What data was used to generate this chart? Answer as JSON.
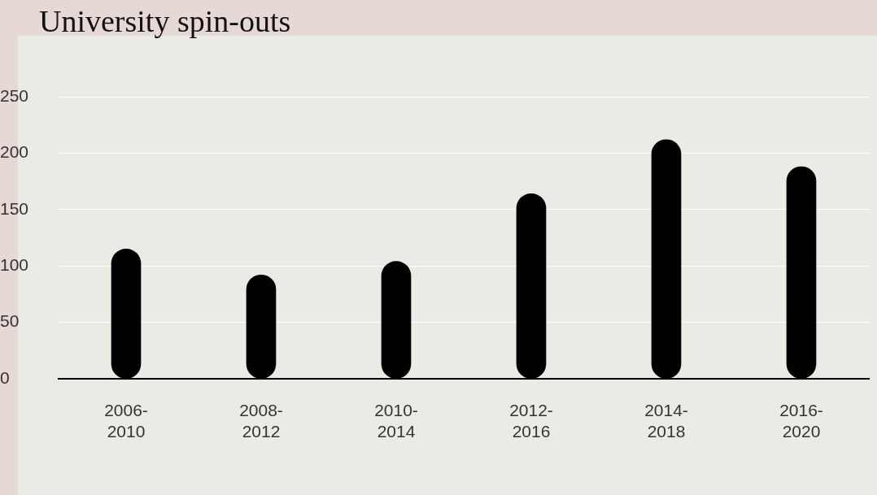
{
  "chart_data": {
    "type": "bar",
    "title": "University spin-outs",
    "categories": [
      "2006-2010",
      "2008-2012",
      "2010-2014",
      "2012-2016",
      "2014-2018",
      "2016-2020"
    ],
    "values": [
      115,
      92,
      104,
      164,
      212,
      188
    ],
    "color": "#000000",
    "ylim": [
      0,
      250
    ],
    "yticks": [
      0,
      50,
      100,
      150,
      200,
      250
    ],
    "grid": "y"
  }
}
